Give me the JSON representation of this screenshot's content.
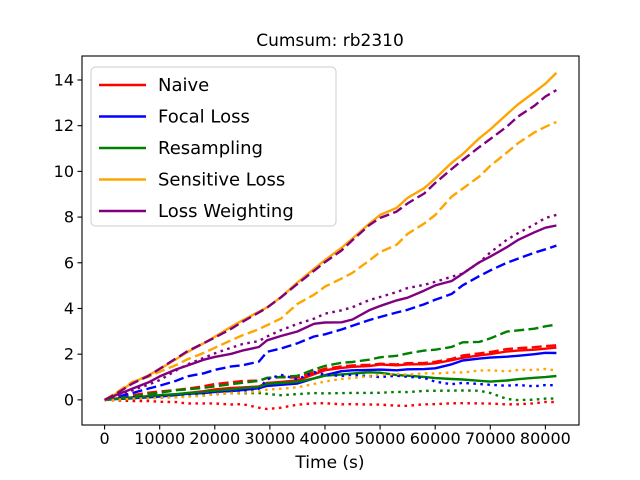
{
  "chart_data": {
    "type": "line",
    "title": "Cumsum: rb2310",
    "xlabel": "Time (s)",
    "ylabel": "",
    "xlim": [
      -4100,
      86100
    ],
    "ylim": [
      -1.1,
      15.05
    ],
    "xticks": [
      0,
      10000,
      20000,
      30000,
      40000,
      50000,
      60000,
      70000,
      80000
    ],
    "yticks": [
      0,
      2,
      4,
      6,
      8,
      10,
      12,
      14
    ],
    "grid": false,
    "legend_position": "upper left",
    "legend": {
      "entries": [
        {
          "label": "Naive",
          "color": "#ff0000"
        },
        {
          "label": "Focal Loss",
          "color": "#0000ff"
        },
        {
          "label": "Resampling",
          "color": "#008000"
        },
        {
          "label": "Sensitive Loss",
          "color": "#ffa500"
        },
        {
          "label": "Loss Weighting",
          "color": "#800080"
        }
      ]
    },
    "x": [
      0,
      2000,
      5000,
      8000,
      10000,
      13000,
      15000,
      18000,
      20000,
      23000,
      25000,
      28000,
      29500,
      32000,
      35000,
      38000,
      40000,
      43000,
      45000,
      48000,
      50000,
      53000,
      55000,
      58000,
      60000,
      63000,
      65000,
      68000,
      70000,
      73000,
      75000,
      78000,
      80000,
      82000
    ],
    "series": [
      {
        "name": "Naive",
        "style": "solid",
        "color": "#ff0000",
        "values": [
          0,
          0.05,
          0.1,
          0.15,
          0.2,
          0.25,
          0.3,
          0.38,
          0.45,
          0.5,
          0.55,
          0.6,
          0.75,
          0.8,
          0.85,
          1.1,
          1.3,
          1.4,
          1.45,
          1.5,
          1.55,
          1.5,
          1.55,
          1.55,
          1.6,
          1.75,
          1.85,
          1.95,
          2.0,
          2.1,
          2.15,
          2.2,
          2.25,
          2.3
        ]
      },
      {
        "name": "Focal Loss",
        "style": "solid",
        "color": "#0000ff",
        "values": [
          0,
          0.03,
          0.08,
          0.12,
          0.15,
          0.2,
          0.25,
          0.3,
          0.35,
          0.4,
          0.45,
          0.5,
          0.6,
          0.65,
          0.7,
          0.95,
          1.1,
          1.25,
          1.3,
          1.3,
          1.3,
          1.3,
          1.35,
          1.35,
          1.4,
          1.55,
          1.7,
          1.8,
          1.85,
          1.9,
          1.95,
          2.0,
          2.05,
          2.05
        ]
      },
      {
        "name": "Resampling",
        "style": "solid",
        "color": "#008000",
        "values": [
          0,
          0.05,
          0.1,
          0.15,
          0.2,
          0.25,
          0.3,
          0.35,
          0.4,
          0.45,
          0.5,
          0.55,
          0.7,
          0.75,
          0.8,
          0.95,
          1.05,
          1.1,
          1.15,
          1.2,
          1.2,
          1.1,
          1.05,
          1.0,
          0.95,
          0.9,
          0.9,
          0.85,
          0.8,
          0.85,
          0.9,
          0.95,
          1.0,
          1.05
        ]
      },
      {
        "name": "Sensitive Loss",
        "style": "solid",
        "color": "#ffa500",
        "values": [
          0,
          0.25,
          0.7,
          1.1,
          1.4,
          1.8,
          2.1,
          2.45,
          2.7,
          3.2,
          3.5,
          3.9,
          4.1,
          4.5,
          5.1,
          5.7,
          6.1,
          6.7,
          7.1,
          7.7,
          8.1,
          8.35,
          8.8,
          9.3,
          9.7,
          10.4,
          10.8,
          11.4,
          11.8,
          12.5,
          12.9,
          13.5,
          13.9,
          14.3
        ]
      },
      {
        "name": "Loss Weighting",
        "style": "solid",
        "color": "#800080",
        "values": [
          0,
          0.2,
          0.5,
          0.8,
          1.0,
          1.3,
          1.5,
          1.75,
          1.9,
          2.05,
          2.15,
          2.3,
          2.6,
          2.75,
          3.0,
          3.35,
          3.4,
          3.4,
          3.5,
          3.9,
          4.1,
          4.35,
          4.5,
          4.8,
          5.0,
          5.2,
          5.5,
          6.0,
          6.3,
          6.7,
          7.0,
          7.35,
          7.5,
          7.6
        ]
      },
      {
        "name": "Naive",
        "style": "dashed",
        "color": "#ff0000",
        "values": [
          0,
          0.1,
          0.2,
          0.3,
          0.35,
          0.45,
          0.5,
          0.6,
          0.7,
          0.75,
          0.8,
          0.85,
          0.95,
          1.0,
          1.0,
          1.2,
          1.35,
          1.45,
          1.5,
          1.55,
          1.6,
          1.55,
          1.6,
          1.6,
          1.65,
          1.8,
          1.95,
          2.05,
          2.1,
          2.2,
          2.25,
          2.3,
          2.35,
          2.4
        ]
      },
      {
        "name": "Focal Loss",
        "style": "dashed",
        "color": "#0000ff",
        "values": [
          0,
          0.1,
          0.3,
          0.5,
          0.65,
          0.85,
          1.0,
          1.15,
          1.3,
          1.45,
          1.55,
          1.7,
          2.1,
          2.25,
          2.45,
          2.75,
          2.9,
          3.1,
          3.25,
          3.5,
          3.6,
          3.8,
          3.95,
          4.2,
          4.4,
          4.65,
          5.0,
          5.4,
          5.65,
          6.0,
          6.2,
          6.45,
          6.6,
          6.75
        ]
      },
      {
        "name": "Resampling",
        "style": "dashed",
        "color": "#008000",
        "values": [
          0,
          0.08,
          0.15,
          0.25,
          0.3,
          0.4,
          0.45,
          0.55,
          0.6,
          0.7,
          0.75,
          0.8,
          0.95,
          1.0,
          1.05,
          1.35,
          1.5,
          1.6,
          1.65,
          1.75,
          1.85,
          1.95,
          2.05,
          2.15,
          2.2,
          2.3,
          2.5,
          2.55,
          2.7,
          3.0,
          3.05,
          3.1,
          3.2,
          3.3
        ]
      },
      {
        "name": "Sensitive Loss",
        "style": "dashed",
        "color": "#ffa500",
        "values": [
          0,
          0.3,
          0.75,
          1.0,
          1.25,
          1.55,
          1.8,
          2.05,
          2.25,
          2.6,
          2.8,
          3.1,
          3.3,
          3.6,
          4.2,
          4.6,
          4.9,
          5.3,
          5.6,
          6.1,
          6.5,
          6.8,
          7.2,
          7.7,
          8.1,
          8.9,
          9.3,
          9.8,
          10.2,
          10.8,
          11.2,
          11.7,
          12.0,
          12.2
        ]
      },
      {
        "name": "Loss Weighting",
        "style": "dashed",
        "color": "#800080",
        "values": [
          0,
          0.25,
          0.7,
          1.1,
          1.4,
          1.8,
          2.1,
          2.45,
          2.7,
          3.15,
          3.45,
          3.85,
          4.05,
          4.45,
          5.05,
          5.65,
          6.05,
          6.6,
          7.0,
          7.6,
          7.95,
          8.2,
          8.6,
          9.1,
          9.5,
          10.1,
          10.5,
          11.0,
          11.4,
          12.0,
          12.4,
          12.9,
          13.3,
          13.5
        ]
      },
      {
        "name": "Naive",
        "style": "dotted",
        "color": "#ff0000",
        "values": [
          0,
          -0.02,
          -0.05,
          -0.05,
          -0.1,
          -0.1,
          -0.15,
          -0.15,
          -0.15,
          -0.2,
          -0.2,
          -0.35,
          -0.4,
          -0.35,
          -0.2,
          -0.15,
          -0.15,
          -0.2,
          -0.2,
          -0.2,
          -0.2,
          -0.25,
          -0.25,
          -0.2,
          -0.2,
          -0.15,
          -0.15,
          -0.15,
          -0.15,
          -0.2,
          -0.2,
          -0.15,
          -0.1,
          -0.1
        ]
      },
      {
        "name": "Focal Loss",
        "style": "dotted",
        "color": "#0000ff",
        "values": [
          0,
          0.05,
          0.1,
          0.1,
          0.15,
          0.15,
          0.2,
          0.25,
          0.3,
          0.35,
          0.4,
          0.5,
          0.9,
          1.1,
          0.9,
          1.2,
          1.1,
          1.05,
          1.1,
          1.05,
          1.0,
          1.05,
          1.0,
          0.95,
          0.8,
          0.7,
          0.75,
          0.7,
          0.65,
          0.6,
          0.65,
          0.6,
          0.65,
          0.65
        ]
      },
      {
        "name": "Resampling",
        "style": "dotted",
        "color": "#008000",
        "values": [
          0,
          0.02,
          0.05,
          0.08,
          0.1,
          0.12,
          0.15,
          0.2,
          0.25,
          0.3,
          0.3,
          0.3,
          0.25,
          0.2,
          0.25,
          0.3,
          0.3,
          0.3,
          0.3,
          0.3,
          0.3,
          0.35,
          0.35,
          0.4,
          0.4,
          0.4,
          0.4,
          0.4,
          0.3,
          0.05,
          0.0,
          0.0,
          0.05,
          0.05
        ]
      },
      {
        "name": "Sensitive Loss",
        "style": "dotted",
        "color": "#ffa500",
        "values": [
          0,
          0.0,
          0.05,
          0.05,
          0.1,
          0.1,
          0.15,
          0.2,
          0.25,
          0.3,
          0.3,
          0.35,
          0.45,
          0.5,
          0.55,
          0.7,
          0.8,
          0.9,
          0.95,
          1.05,
          1.1,
          1.15,
          1.1,
          1.15,
          1.15,
          1.2,
          1.2,
          1.3,
          1.3,
          1.25,
          1.3,
          1.3,
          1.35,
          1.3
        ]
      },
      {
        "name": "Loss Weighting",
        "style": "dotted",
        "color": "#800080",
        "values": [
          0,
          0.15,
          0.4,
          0.7,
          0.9,
          1.3,
          1.55,
          1.8,
          2.0,
          2.3,
          2.45,
          2.6,
          2.8,
          3.05,
          3.3,
          3.55,
          3.75,
          3.95,
          4.1,
          4.35,
          4.5,
          4.7,
          4.85,
          5.05,
          5.2,
          5.4,
          5.55,
          6.0,
          6.4,
          7.0,
          7.3,
          7.7,
          8.0,
          8.1
        ]
      }
    ]
  }
}
